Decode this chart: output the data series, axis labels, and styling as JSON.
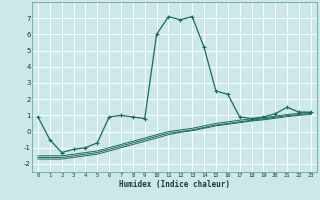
{
  "title": "",
  "xlabel": "Humidex (Indice chaleur)",
  "bg_color": "#cce8e8",
  "grid_color": "#ffffff",
  "line_color": "#1a6b5a",
  "xlim": [
    -0.5,
    23.5
  ],
  "ylim": [
    -2.5,
    8.0
  ],
  "yticks": [
    -2,
    -1,
    0,
    1,
    2,
    3,
    4,
    5,
    6,
    7
  ],
  "xticks": [
    0,
    1,
    2,
    3,
    4,
    5,
    6,
    7,
    8,
    9,
    10,
    11,
    12,
    13,
    14,
    15,
    16,
    17,
    18,
    19,
    20,
    21,
    22,
    23
  ],
  "main_x": [
    0,
    1,
    2,
    3,
    4,
    5,
    6,
    7,
    8,
    9,
    10,
    11,
    12,
    13,
    14,
    15,
    16,
    17,
    18,
    19,
    20,
    21,
    22,
    23
  ],
  "main_y": [
    0.9,
    -0.5,
    -1.3,
    -1.1,
    -1.0,
    -0.7,
    0.9,
    1.0,
    0.9,
    0.8,
    6.0,
    7.1,
    6.9,
    7.1,
    5.2,
    2.5,
    2.3,
    0.9,
    0.8,
    0.9,
    1.1,
    1.5,
    1.2,
    1.2
  ],
  "line2_x": [
    0,
    1,
    2,
    3,
    4,
    5,
    6,
    7,
    8,
    9,
    10,
    11,
    12,
    13,
    14,
    15,
    16,
    17,
    18,
    19,
    20,
    21,
    22,
    23
  ],
  "line2_y": [
    -1.5,
    -1.5,
    -1.5,
    -1.4,
    -1.3,
    -1.2,
    -1.0,
    -0.8,
    -0.6,
    -0.4,
    -0.2,
    0.0,
    0.1,
    0.2,
    0.35,
    0.5,
    0.6,
    0.7,
    0.78,
    0.85,
    0.95,
    1.05,
    1.12,
    1.18
  ],
  "line3_x": [
    0,
    1,
    2,
    3,
    4,
    5,
    6,
    7,
    8,
    9,
    10,
    11,
    12,
    13,
    14,
    15,
    16,
    17,
    18,
    19,
    20,
    21,
    22,
    23
  ],
  "line3_y": [
    -1.6,
    -1.6,
    -1.6,
    -1.5,
    -1.4,
    -1.3,
    -1.1,
    -0.9,
    -0.7,
    -0.5,
    -0.3,
    -0.1,
    0.0,
    0.1,
    0.25,
    0.4,
    0.5,
    0.6,
    0.7,
    0.78,
    0.88,
    0.98,
    1.05,
    1.12
  ],
  "line4_x": [
    0,
    1,
    2,
    3,
    4,
    5,
    6,
    7,
    8,
    9,
    10,
    11,
    12,
    13,
    14,
    15,
    16,
    17,
    18,
    19,
    20,
    21,
    22,
    23
  ],
  "line4_y": [
    -1.7,
    -1.7,
    -1.7,
    -1.6,
    -1.5,
    -1.4,
    -1.2,
    -1.0,
    -0.8,
    -0.6,
    -0.4,
    -0.2,
    -0.05,
    0.05,
    0.2,
    0.35,
    0.45,
    0.55,
    0.65,
    0.72,
    0.82,
    0.92,
    1.0,
    1.05
  ]
}
